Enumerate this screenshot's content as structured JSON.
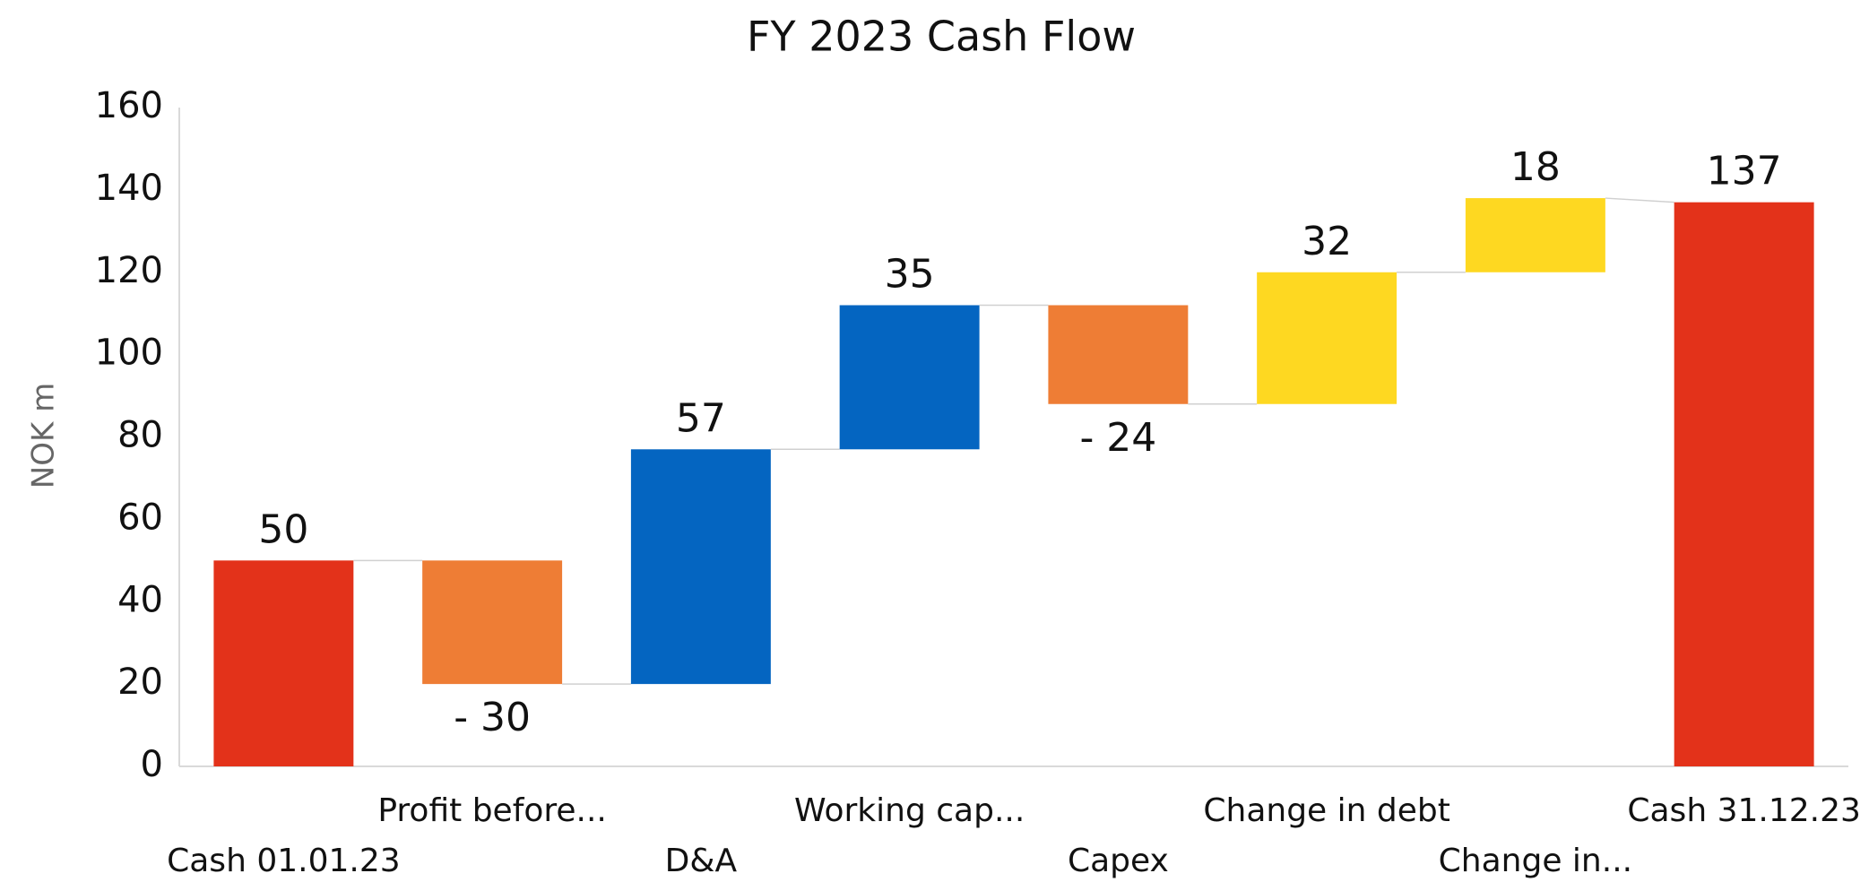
{
  "chart_data": {
    "type": "waterfall",
    "title": "FY 2023 Cash Flow",
    "y_label": "NOK m",
    "categories": [
      "Cash 01.01.23",
      "Profit before...",
      "D&A",
      "Working cap...",
      "Capex",
      "Change in debt",
      "Change in...",
      "Cash 31.12.23"
    ],
    "values": [
      50,
      -30,
      57,
      35,
      -24,
      32,
      18,
      137
    ],
    "value_labels": [
      "50",
      "- 30",
      "57",
      "35",
      "- 24",
      "32",
      "18",
      "137"
    ],
    "measure": [
      "absolute",
      "relative",
      "relative",
      "relative",
      "relative",
      "relative",
      "relative",
      "absolute"
    ],
    "colors": [
      "#e3321a",
      "#ee7d35",
      "#0465c1",
      "#0465c1",
      "#ee7d35",
      "#fed821",
      "#fed821",
      "#e3321a"
    ],
    "ylim": [
      0,
      160
    ],
    "yticks": [
      0,
      20,
      40,
      60,
      80,
      100,
      120,
      140,
      160
    ]
  }
}
